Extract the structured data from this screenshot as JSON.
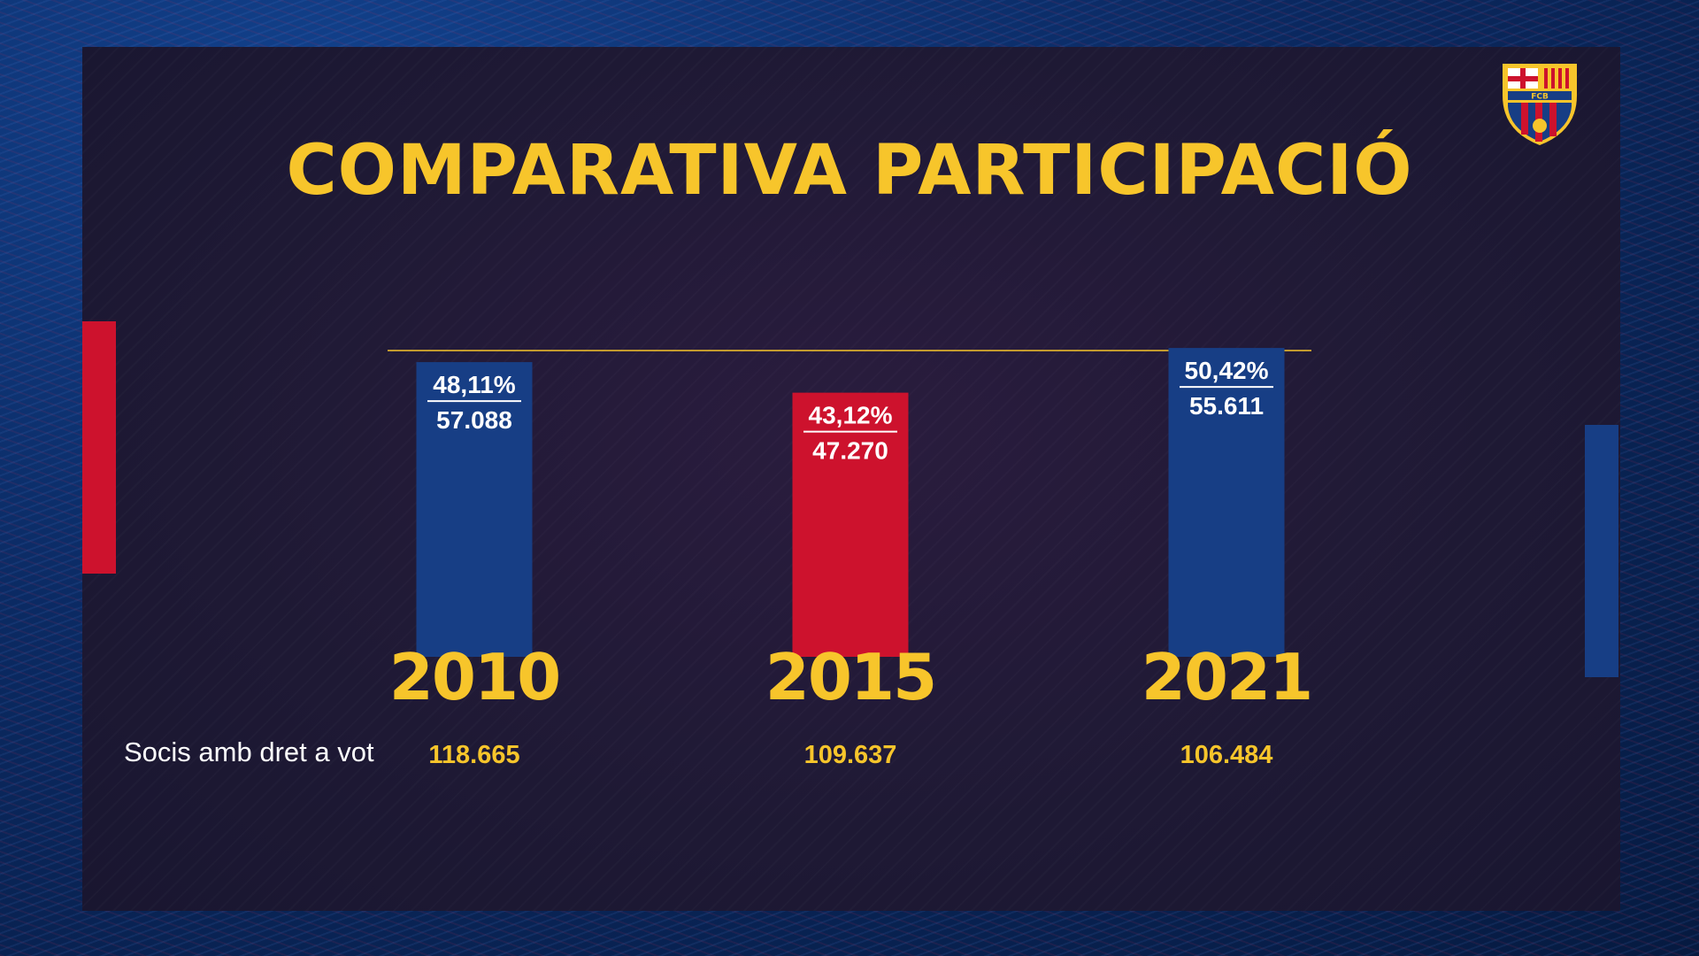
{
  "colors": {
    "accent": "#f7c52b",
    "blue": "#173e85",
    "red": "#cd122d",
    "text": "#ffffff"
  },
  "logo": {
    "text": "FCB"
  },
  "chart_data": {
    "type": "bar",
    "title": "COMPARATIVA PARTICIPACIÓ",
    "categories": [
      "2010",
      "2015",
      "2021"
    ],
    "percent_labels": [
      "48,11%",
      "43,12%",
      "50,42%"
    ],
    "vote_labels": [
      "57.088",
      "47.270",
      "55.611"
    ],
    "values": [
      48.11,
      43.12,
      50.42
    ],
    "bar_colors": [
      "blue",
      "red",
      "blue"
    ],
    "reference_line": true,
    "ylim": [
      0,
      50
    ],
    "members_row": {
      "label": "Socis amb dret a vot",
      "values": [
        "118.665",
        "109.637",
        "106.484"
      ]
    }
  }
}
